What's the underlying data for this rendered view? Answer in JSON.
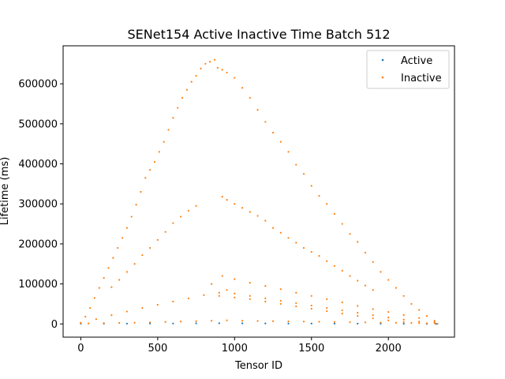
{
  "chart_data": {
    "type": "scatter",
    "title": "SENet154 Active Inactive Time Batch 512",
    "xlabel": "Tensor ID",
    "ylabel": "Lifetime (ms)",
    "xlim": [
      -115,
      2430
    ],
    "ylim": [
      -33000,
      695000
    ],
    "xticks": [
      0,
      500,
      1000,
      1500,
      2000
    ],
    "yticks": [
      0,
      100000,
      200000,
      300000,
      400000,
      500000,
      600000
    ],
    "xtick_labels": [
      "0",
      "500",
      "1000",
      "1500",
      "2000"
    ],
    "ytick_labels": [
      "0",
      "100000",
      "200000",
      "300000",
      "400000",
      "500000",
      "600000"
    ],
    "grid": false,
    "legend_position": "top-right",
    "series": [
      {
        "name": "Active",
        "color": "#1f77b4",
        "points": [
          [
            0,
            600
          ],
          [
            150,
            800
          ],
          [
            300,
            900
          ],
          [
            450,
            1000
          ],
          [
            600,
            1200
          ],
          [
            750,
            1500
          ],
          [
            900,
            1800
          ],
          [
            1050,
            1500
          ],
          [
            1200,
            1300
          ],
          [
            1350,
            1100
          ],
          [
            1500,
            1000
          ],
          [
            1650,
            900
          ],
          [
            1800,
            800
          ],
          [
            1950,
            700
          ],
          [
            2100,
            500
          ],
          [
            2250,
            300
          ],
          [
            2310,
            100
          ]
        ]
      },
      {
        "name": "Inactive",
        "color": "#ff7f0e",
        "points": [
          [
            0,
            2000
          ],
          [
            30,
            18000
          ],
          [
            60,
            40000
          ],
          [
            90,
            65000
          ],
          [
            120,
            90000
          ],
          [
            150,
            115000
          ],
          [
            180,
            140000
          ],
          [
            210,
            165000
          ],
          [
            240,
            190000
          ],
          [
            270,
            215000
          ],
          [
            300,
            240000
          ],
          [
            330,
            268000
          ],
          [
            360,
            298000
          ],
          [
            390,
            330000
          ],
          [
            420,
            365000
          ],
          [
            450,
            385000
          ],
          [
            480,
            405000
          ],
          [
            510,
            430000
          ],
          [
            540,
            455000
          ],
          [
            570,
            485000
          ],
          [
            600,
            515000
          ],
          [
            630,
            540000
          ],
          [
            660,
            565000
          ],
          [
            690,
            585000
          ],
          [
            720,
            605000
          ],
          [
            750,
            620000
          ],
          [
            780,
            638000
          ],
          [
            810,
            650000
          ],
          [
            840,
            655000
          ],
          [
            870,
            660000
          ],
          [
            890,
            640000
          ],
          [
            920,
            635000
          ],
          [
            950,
            628000
          ],
          [
            1000,
            615000
          ],
          [
            1050,
            590000
          ],
          [
            1100,
            565000
          ],
          [
            1150,
            535000
          ],
          [
            1200,
            505000
          ],
          [
            1250,
            478000
          ],
          [
            1300,
            455000
          ],
          [
            1350,
            430000
          ],
          [
            1400,
            398000
          ],
          [
            1450,
            375000
          ],
          [
            1500,
            345000
          ],
          [
            1550,
            320000
          ],
          [
            1600,
            300000
          ],
          [
            1650,
            275000
          ],
          [
            1700,
            250000
          ],
          [
            1750,
            225000
          ],
          [
            1800,
            205000
          ],
          [
            1850,
            178000
          ],
          [
            1900,
            155000
          ],
          [
            1950,
            130000
          ],
          [
            2000,
            110000
          ],
          [
            2050,
            90000
          ],
          [
            2100,
            70000
          ],
          [
            2150,
            50000
          ],
          [
            2200,
            35000
          ],
          [
            2250,
            20000
          ],
          [
            2300,
            5000
          ],
          [
            200,
            92000
          ],
          [
            250,
            110000
          ],
          [
            300,
            130000
          ],
          [
            350,
            150000
          ],
          [
            400,
            172000
          ],
          [
            450,
            190000
          ],
          [
            500,
            210000
          ],
          [
            550,
            230000
          ],
          [
            600,
            252000
          ],
          [
            650,
            268000
          ],
          [
            700,
            283000
          ],
          [
            750,
            295000
          ],
          [
            920,
            318000
          ],
          [
            950,
            310000
          ],
          [
            1000,
            300000
          ],
          [
            1050,
            290000
          ],
          [
            1100,
            280000
          ],
          [
            1150,
            270000
          ],
          [
            1200,
            258000
          ],
          [
            1250,
            240000
          ],
          [
            1300,
            228000
          ],
          [
            1350,
            215000
          ],
          [
            1400,
            203000
          ],
          [
            1450,
            190000
          ],
          [
            1500,
            180000
          ],
          [
            1550,
            170000
          ],
          [
            1600,
            157000
          ],
          [
            1650,
            145000
          ],
          [
            1700,
            133000
          ],
          [
            1750,
            120000
          ],
          [
            1800,
            108000
          ],
          [
            1850,
            96000
          ],
          [
            1900,
            85000
          ],
          [
            0,
            3000
          ],
          [
            100,
            12000
          ],
          [
            200,
            22000
          ],
          [
            300,
            31000
          ],
          [
            400,
            40000
          ],
          [
            500,
            48000
          ],
          [
            600,
            56000
          ],
          [
            700,
            64000
          ],
          [
            800,
            72000
          ],
          [
            850,
            100000
          ],
          [
            900,
            78000
          ],
          [
            950,
            85000
          ],
          [
            1000,
            76000
          ],
          [
            1100,
            70000
          ],
          [
            1200,
            64000
          ],
          [
            1300,
            58000
          ],
          [
            1400,
            52000
          ],
          [
            1500,
            46000
          ],
          [
            1600,
            40000
          ],
          [
            1700,
            34000
          ],
          [
            1800,
            28000
          ],
          [
            1900,
            22000
          ],
          [
            2000,
            16000
          ],
          [
            2100,
            11000
          ],
          [
            2200,
            6000
          ],
          [
            2300,
            2000
          ],
          [
            920,
            120000
          ],
          [
            1000,
            112000
          ],
          [
            1100,
            103000
          ],
          [
            1200,
            95000
          ],
          [
            1300,
            87000
          ],
          [
            1400,
            78000
          ],
          [
            1500,
            70000
          ],
          [
            1600,
            62000
          ],
          [
            1700,
            54000
          ],
          [
            1800,
            45000
          ],
          [
            1900,
            37000
          ],
          [
            2000,
            30000
          ],
          [
            2100,
            22000
          ],
          [
            2200,
            15000
          ],
          [
            2300,
            8000
          ],
          [
            900,
            70000
          ],
          [
            1000,
            66000
          ],
          [
            1100,
            62000
          ],
          [
            1200,
            56000
          ],
          [
            1300,
            50000
          ],
          [
            1400,
            44000
          ],
          [
            1500,
            38000
          ],
          [
            1600,
            32000
          ],
          [
            1700,
            26000
          ],
          [
            1800,
            20000
          ],
          [
            1900,
            14000
          ],
          [
            2000,
            9000
          ],
          [
            2100,
            5000
          ],
          [
            2200,
            2000
          ],
          [
            50,
            1000
          ],
          [
            150,
            2000
          ],
          [
            250,
            2500
          ],
          [
            350,
            3000
          ],
          [
            450,
            4000
          ],
          [
            550,
            5000
          ],
          [
            650,
            6000
          ],
          [
            750,
            7000
          ],
          [
            850,
            8000
          ],
          [
            950,
            9000
          ],
          [
            1050,
            8000
          ],
          [
            1150,
            7500
          ],
          [
            1250,
            7000
          ],
          [
            1350,
            6500
          ],
          [
            1450,
            6000
          ],
          [
            1550,
            5500
          ],
          [
            1650,
            5000
          ],
          [
            1750,
            4500
          ],
          [
            1850,
            4000
          ],
          [
            1950,
            3500
          ],
          [
            2050,
            3000
          ],
          [
            2150,
            2500
          ],
          [
            2250,
            1500
          ],
          [
            2320,
            500
          ]
        ]
      }
    ]
  }
}
